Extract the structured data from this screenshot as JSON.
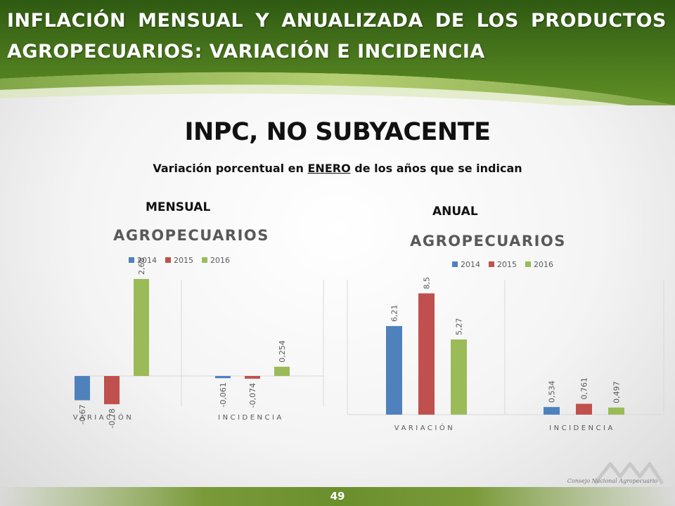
{
  "slide": {
    "title": "INFLACIÓN MENSUAL Y ANUALIZADA DE LOS PRODUCTOS AGROPECUARIOS: VARIACIÓN E INCIDENCIA",
    "heading": "INPC, NO SUBYACENTE",
    "subheading_pre": "Variación porcentual en ",
    "subheading_highlight": "ENERO",
    "subheading_post": " de los años que se indican",
    "mensual_label": "MENSUAL",
    "anual_label": "ANUAL",
    "page_number": "49",
    "logo_text": "Consejo Nacional Agropecuario",
    "colors": {
      "2014": "#4f81bd",
      "2015": "#c0504d",
      "2016": "#9bbb59",
      "banner": "#4e7a1e"
    }
  },
  "chart_data": [
    {
      "type": "bar",
      "title": "AGROPECUARIOS",
      "categories": [
        "VARIACIÓN",
        "INCIDENCIA"
      ],
      "series": [
        {
          "name": "2014",
          "values": [
            -0.67,
            -0.061
          ],
          "labels": [
            "-0,67",
            "-0,061"
          ]
        },
        {
          "name": "2015",
          "values": [
            -0.78,
            -0.074
          ],
          "labels": [
            "-0,78",
            "-0,074"
          ]
        },
        {
          "name": "2016",
          "values": [
            2.68,
            0.254
          ],
          "labels": [
            "2,68",
            "0,254"
          ]
        }
      ],
      "legend": "top",
      "grid": false
    },
    {
      "type": "bar",
      "title": "AGROPECUARIOS",
      "categories": [
        "VARIACIÓN",
        "INCIDENCIA"
      ],
      "series": [
        {
          "name": "2014",
          "values": [
            6.21,
            0.534
          ],
          "labels": [
            "6,21",
            "0,534"
          ]
        },
        {
          "name": "2015",
          "values": [
            8.5,
            0.761
          ],
          "labels": [
            "8,5",
            "0,761"
          ]
        },
        {
          "name": "2016",
          "values": [
            5.27,
            0.497
          ],
          "labels": [
            "5,27",
            "0,497"
          ]
        }
      ],
      "legend": "top",
      "grid": false
    }
  ]
}
